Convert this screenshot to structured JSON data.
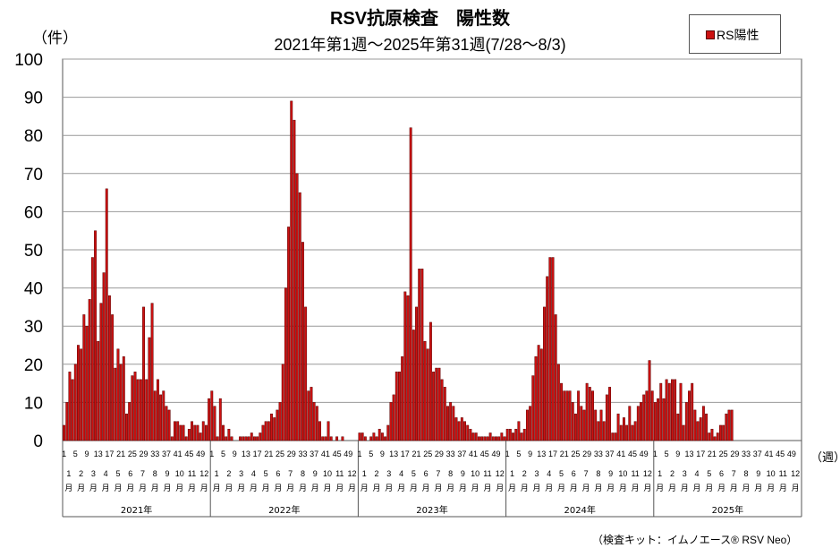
{
  "title": "RSV抗原検査　陽性数",
  "subtitle": "2021年第1週～2025年第31週(7/28～8/3)",
  "y_unit_label": "（件）",
  "x_unit_label": "（週）",
  "legend_label": "RS陽性",
  "footnote": "（検査キット：イムノエース® RSV Neo）",
  "colors": {
    "bar": "#cc1111",
    "bar_edge": "#5a0000",
    "grid": "#999999",
    "axis": "#555555"
  },
  "chart_data": {
    "type": "bar",
    "ylim": [
      0,
      100
    ],
    "yticks": [
      0,
      10,
      20,
      30,
      40,
      50,
      60,
      70,
      80,
      90,
      100
    ],
    "grid": true,
    "legend_position": "top-right",
    "series": [
      {
        "name": "RS陽性",
        "years": [
          {
            "year": "2021年",
            "values": [
              4,
              10,
              18,
              16,
              20,
              25,
              24,
              33,
              30,
              37,
              48,
              55,
              26,
              36,
              44,
              66,
              38,
              33,
              19,
              24,
              20,
              22,
              7,
              10,
              17,
              18,
              16,
              16,
              35,
              16,
              27,
              36,
              13,
              16,
              12,
              13,
              9,
              8,
              1,
              5,
              5,
              4,
              4,
              1,
              3,
              5,
              4,
              4,
              2,
              5,
              4,
              11
            ]
          },
          {
            "year": "2022年",
            "values": [
              13,
              9,
              1,
              11,
              4,
              1,
              3,
              1,
              0,
              0,
              1,
              1,
              1,
              1,
              2,
              1,
              1,
              2,
              4,
              5,
              5,
              7,
              6,
              8,
              10,
              20,
              40,
              56,
              89,
              84,
              70,
              65,
              52,
              35,
              13,
              14,
              10,
              9,
              5,
              1,
              1,
              5,
              1,
              0,
              1,
              0,
              1,
              0,
              0,
              0,
              0,
              0
            ]
          },
          {
            "year": "2023年",
            "values": [
              2,
              2,
              1,
              0,
              1,
              2,
              1,
              3,
              2,
              1,
              4,
              10,
              12,
              18,
              18,
              22,
              39,
              38,
              82,
              29,
              35,
              45,
              45,
              26,
              24,
              31,
              18,
              19,
              19,
              16,
              14,
              9,
              10,
              9,
              6,
              5,
              6,
              5,
              4,
              3,
              2,
              2,
              1,
              1,
              1,
              1,
              2,
              1,
              1,
              1,
              2,
              1
            ]
          },
          {
            "year": "2024年",
            "values": [
              3,
              3,
              2,
              3,
              5,
              2,
              3,
              8,
              9,
              17,
              22,
              25,
              24,
              35,
              43,
              48,
              48,
              33,
              20,
              15,
              13,
              13,
              13,
              10,
              7,
              13,
              9,
              8,
              15,
              14,
              13,
              8,
              5,
              8,
              5,
              12,
              14,
              2,
              2,
              7,
              4,
              6,
              4,
              9,
              4,
              5,
              9,
              10,
              12,
              13,
              21,
              13
            ]
          },
          {
            "year": "2025年",
            "values": [
              10,
              11,
              15,
              11,
              16,
              15,
              16,
              16,
              7,
              15,
              4,
              10,
              13,
              15,
              8,
              5,
              6,
              9,
              7,
              2,
              3,
              1,
              2,
              4,
              4,
              7,
              8,
              8,
              0,
              0,
              0,
              0,
              0,
              0,
              0,
              0,
              0,
              0,
              0,
              0,
              0,
              0,
              0,
              0,
              0,
              0,
              0,
              0,
              0,
              0,
              0,
              0
            ]
          }
        ]
      }
    ],
    "week_tick_labels": [
      "1",
      "5",
      "9",
      "13",
      "17",
      "21",
      "25",
      "29",
      "33",
      "37",
      "41",
      "45",
      "49"
    ],
    "month_labels": [
      "1月",
      "2月",
      "3月",
      "4月",
      "5月",
      "6月",
      "7月",
      "8月",
      "9月",
      "10月",
      "11月",
      "12月"
    ],
    "year_labels": [
      "2021年",
      "2022年",
      "2023年",
      "2024年",
      "2025年"
    ]
  }
}
